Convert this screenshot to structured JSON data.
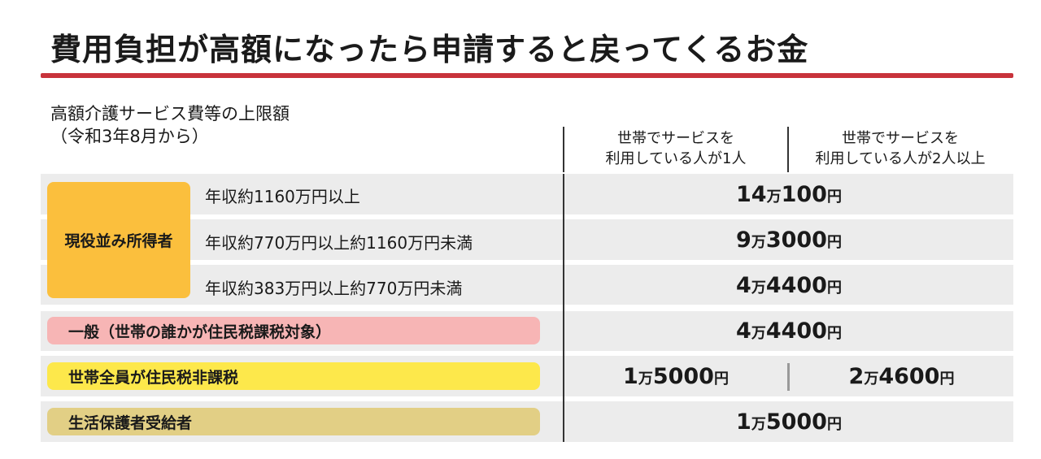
{
  "title": "費用負担が高額になったら申請すると戻ってくるお金",
  "subtitle": {
    "line1": "高額介護サービス費等の上限額",
    "line2": "（令和3年8月から）"
  },
  "columns": {
    "one_person": {
      "line1": "世帯でサービスを",
      "line2": "利用している人が1人"
    },
    "two_or_more": {
      "line1": "世帯でサービスを",
      "line2": "利用している人が2人以上"
    }
  },
  "colors": {
    "rule": "#c8333b",
    "working_age": "#fbbf3d",
    "general": "#f7b5b5",
    "tax_exempt": "#fde84b",
    "welfare": "#e2cf85",
    "band": "#ececec"
  },
  "rows": {
    "working_age": {
      "label": "現役並み所得者",
      "sub": [
        {
          "income": "年収約1160万円以上",
          "amt_man": "14",
          "amt_rest": "100",
          "unit_man": "万",
          "unit_yen": "円"
        },
        {
          "income": "年収約770万円以上約1160万円未満",
          "amt_man": "9",
          "amt_rest": "3000",
          "unit_man": "万",
          "unit_yen": "円"
        },
        {
          "income": "年収約383万円以上約770万円未満",
          "amt_man": "4",
          "amt_rest": "4400",
          "unit_man": "万",
          "unit_yen": "円"
        }
      ]
    },
    "general": {
      "label": "一般（世帯の誰かが住民税課税対象）",
      "amt_man": "4",
      "amt_rest": "4400",
      "unit_man": "万",
      "unit_yen": "円"
    },
    "tax_exempt": {
      "label": "世帯全員が住民税非課税",
      "one": {
        "amt_man": "1",
        "amt_rest": "5000",
        "unit_man": "万",
        "unit_yen": "円"
      },
      "two": {
        "amt_man": "2",
        "amt_rest": "4600",
        "unit_man": "万",
        "unit_yen": "円"
      }
    },
    "welfare": {
      "label": "生活保護者受給者",
      "amt_man": "1",
      "amt_rest": "5000",
      "unit_man": "万",
      "unit_yen": "円"
    }
  }
}
